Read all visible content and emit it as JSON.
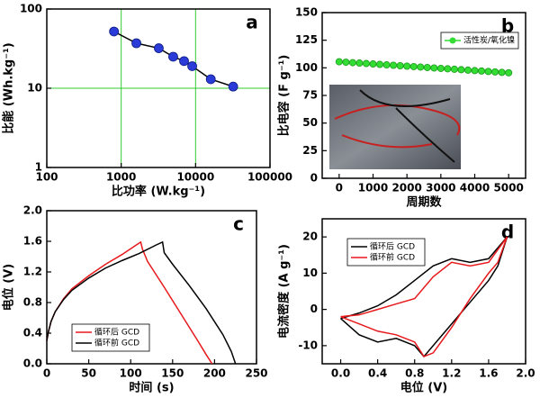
{
  "chart_data": [
    {
      "type": "line",
      "panel_label": "a",
      "x_label": "比功率 (W.kg⁻¹)",
      "y_label": "比能 (Wh.kg⁻¹)",
      "xscale": "log",
      "yscale": "log",
      "grid": true,
      "grid_color": "#33cc33",
      "xlim": [
        100,
        100000
      ],
      "ylim": [
        1,
        100
      ],
      "xticks": [
        100,
        1000,
        10000,
        100000
      ],
      "yticks": [
        1,
        10,
        100
      ],
      "x": [
        800,
        1600,
        3200,
        5000,
        7000,
        9000,
        16000,
        32000
      ],
      "series": [
        {
          "color": "#2a3bd8",
          "line_color": "#000000",
          "marker": "circle",
          "values": [
            52,
            37,
            32,
            25,
            22,
            19,
            13,
            10.5
          ]
        }
      ]
    },
    {
      "type": "line",
      "panel_label": "b",
      "x_label": "周期数",
      "y_label": "比电容 (F g⁻¹)",
      "xlim": [
        -500,
        5500
      ],
      "ylim": [
        0,
        150
      ],
      "xticks": [
        0,
        1000,
        2000,
        3000,
        4000,
        5000
      ],
      "yticks": [
        0,
        25,
        50,
        75,
        100,
        125,
        150
      ],
      "legend": "upper-right",
      "x": [
        0,
        200,
        400,
        600,
        800,
        1000,
        1200,
        1400,
        1600,
        1800,
        2000,
        2200,
        2400,
        2600,
        2800,
        3000,
        3200,
        3400,
        3600,
        3800,
        4000,
        4200,
        4400,
        4600,
        4800,
        5000
      ],
      "series": [
        {
          "name": "活性炭/氧化镍",
          "color": "#33dd33",
          "line_color": "#33dd33",
          "marker": "circle",
          "values": [
            105.5,
            105.1,
            104.7,
            104.3,
            103.9,
            103.5,
            103.1,
            102.7,
            102.3,
            101.9,
            101.5,
            101.1,
            100.7,
            100.3,
            99.9,
            99.5,
            99.1,
            98.7,
            98.3,
            97.9,
            97.5,
            97.1,
            96.7,
            96.3,
            95.9,
            95.5
          ]
        }
      ]
    },
    {
      "type": "line",
      "panel_label": "c",
      "x_label": "时间 (s)",
      "y_label": "电位 (V)",
      "xlim": [
        0,
        250
      ],
      "ylim": [
        0,
        2
      ],
      "xticks": [
        0,
        50,
        100,
        150,
        200,
        250
      ],
      "yticks": [
        {
          "value": 0,
          "label": "0.0"
        },
        0.4,
        0.8,
        1.2,
        1.6,
        {
          "value": 2,
          "label": "2.0"
        }
      ],
      "legend": "lower-left",
      "series": [
        {
          "name": "循环后 GCD",
          "color": "#e8191c",
          "x": [
            0,
            2,
            5,
            10,
            20,
            30,
            50,
            70,
            90,
            105,
            112,
            114,
            120,
            140,
            160,
            180,
            190,
            197
          ],
          "values": [
            0.3,
            0.42,
            0.55,
            0.68,
            0.85,
            0.98,
            1.15,
            1.3,
            1.43,
            1.54,
            1.59,
            1.5,
            1.34,
            1.0,
            0.65,
            0.3,
            0.12,
            0
          ]
        },
        {
          "name": "循环前 GCD",
          "color": "#000000",
          "x": [
            0,
            2,
            5,
            10,
            20,
            30,
            50,
            70,
            90,
            110,
            130,
            138,
            140,
            150,
            170,
            190,
            210,
            220,
            225
          ],
          "values": [
            0.3,
            0.42,
            0.55,
            0.68,
            0.84,
            0.96,
            1.12,
            1.25,
            1.35,
            1.44,
            1.55,
            1.59,
            1.45,
            1.3,
            1.02,
            0.72,
            0.38,
            0.16,
            0
          ]
        }
      ]
    },
    {
      "type": "line",
      "panel_label": "d",
      "x_label": "电位 (V)",
      "y_label": "电流密度 (A g⁻¹)",
      "xlim": [
        -0.2,
        2
      ],
      "ylim": [
        -15,
        25
      ],
      "xticks": [
        {
          "value": 0,
          "label": "0.0"
        },
        0.4,
        0.8,
        1.2,
        1.6,
        {
          "value": 2,
          "label": "2.0"
        }
      ],
      "yticks": [
        -10,
        0,
        10,
        20
      ],
      "legend": "upper-left",
      "series": [
        {
          "name": "循环后 GCD",
          "color": "#000000",
          "x": [
            0,
            0.2,
            0.4,
            0.6,
            0.8,
            1.0,
            1.2,
            1.4,
            1.6,
            1.8,
            1.7,
            1.6,
            1.4,
            1.2,
            1.0,
            0.9,
            0.8,
            0.6,
            0.4,
            0.2,
            0
          ],
          "values": [
            -2.5,
            -1,
            1,
            4,
            8,
            12,
            14,
            13,
            14,
            20,
            12,
            8,
            2,
            -4,
            -10,
            -13,
            -10,
            -8,
            -9,
            -7,
            -2.5
          ]
        },
        {
          "name": "循环前 GCD",
          "color": "#e8191c",
          "x": [
            0,
            0.2,
            0.4,
            0.6,
            0.8,
            1.0,
            1.2,
            1.4,
            1.6,
            1.8,
            1.7,
            1.6,
            1.4,
            1.2,
            1.0,
            0.9,
            0.8,
            0.6,
            0.4,
            0.2,
            0
          ],
          "values": [
            -2,
            -1.5,
            0,
            1.5,
            3,
            9,
            13,
            12,
            13,
            20,
            13,
            10,
            3,
            -5,
            -12,
            -13,
            -9,
            -7,
            -6,
            -4,
            -2
          ]
        }
      ]
    }
  ]
}
